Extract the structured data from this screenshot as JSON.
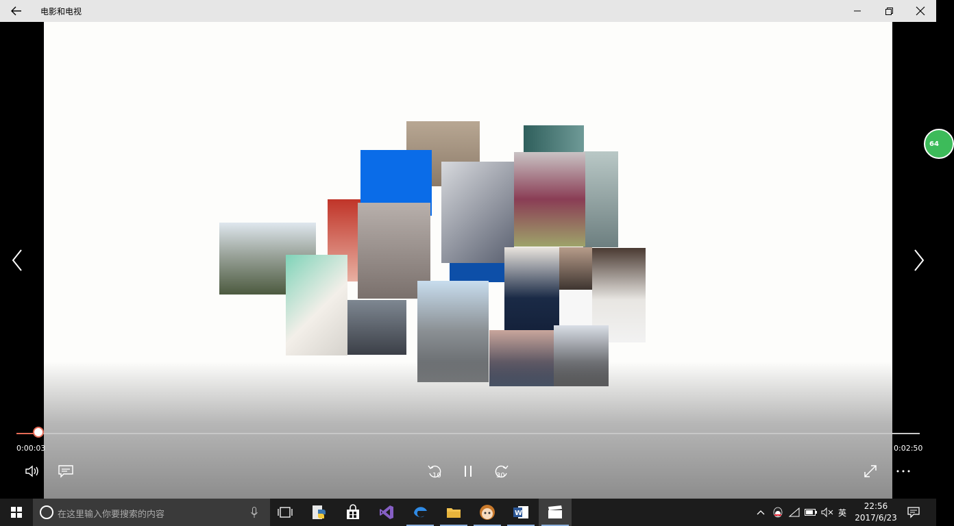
{
  "window": {
    "title": "电影和电视"
  },
  "player": {
    "current_time": "0:00:03",
    "duration": "0:02:50",
    "progress_fraction": 0.018,
    "rewind_label": "10",
    "forward_label": "30",
    "badge_text": "64"
  },
  "taskbar": {
    "search_placeholder": "在这里输入你要搜索的内容",
    "ime_label": "英",
    "time": "22:56",
    "date": "2017/6/23"
  },
  "colors": {
    "accent": "#e56b56",
    "taskbar": "#1c1c1c",
    "titlebar": "#e6e6e6"
  },
  "icons": [
    "back-arrow-icon",
    "minimize-icon",
    "restore-icon",
    "close-icon",
    "prev-icon",
    "next-icon",
    "volume-icon",
    "subtitles-icon",
    "rewind-10-icon",
    "pause-icon",
    "forward-30-icon",
    "fullscreen-icon",
    "more-icon",
    "windows-start-icon",
    "cortana-icon",
    "mic-icon",
    "task-view-icon",
    "python-icon",
    "store-icon",
    "visual-studio-icon",
    "edge-icon",
    "file-explorer-icon",
    "avatar-app-icon",
    "word-icon",
    "movies-tv-icon",
    "tray-chevron-icon",
    "qq-icon",
    "wifi-icon",
    "battery-icon",
    "mute-icon",
    "notification-icon"
  ]
}
